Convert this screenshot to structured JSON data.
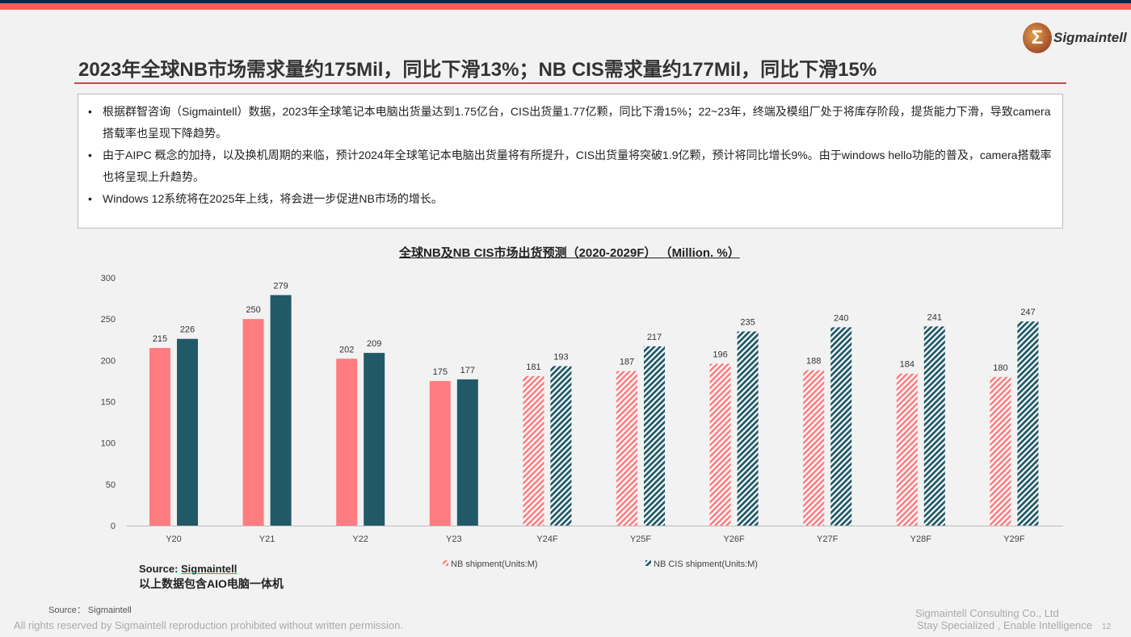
{
  "header": {
    "logo_text": "Sigmaintell",
    "title": "2023年全球NB市场需求量约175Mil，同比下滑13%；NB CIS需求量约177Mil，同比下滑15%"
  },
  "bullets": [
    "根据群智咨询（Sigmaintell）数据，2023年全球笔记本电脑出货量达到1.75亿台，CIS出货量1.77亿颗，同比下滑15%；22~23年，终端及模组厂处于将库存阶段，提货能力下滑，导致camera搭载率也呈现下降趋势。",
    "由于AIPC 概念的加持，以及换机周期的来临，预计2024年全球笔记本电脑出货量将有所提升，CIS出货量将突破1.9亿颗，预计将同比增长9%。由于windows hello功能的普及，camera搭载率也将呈现上升趋势。",
    "Windows 12系统将在2025年上线，将会进一步促进NB市场的增长。"
  ],
  "chart_data": {
    "type": "bar",
    "title": "全球NB及NB CIS市场出货预测（2020-2029F）  （Million. %）",
    "categories": [
      "Y20",
      "Y21",
      "Y22",
      "Y23",
      "Y24F",
      "Y25F",
      "Y26F",
      "Y27F",
      "Y28F",
      "Y29F"
    ],
    "forecast_from_index": 4,
    "series": [
      {
        "name": "NB shipment(Units:M)",
        "color": "#ff7c80",
        "values": [
          215,
          250,
          202,
          175,
          181,
          187,
          196,
          188,
          184,
          180
        ]
      },
      {
        "name": "NB CIS shipment(Units:M)",
        "color": "#215968",
        "values": [
          226,
          279,
          209,
          177,
          193,
          217,
          235,
          240,
          241,
          247
        ]
      }
    ],
    "ylim": [
      0,
      300
    ],
    "yticks": [
      0,
      50,
      100,
      150,
      200,
      250,
      300
    ],
    "legend_position": "bottom"
  },
  "source_label": "Source: ",
  "source_name": "Sigmaintell",
  "note": "以上数据包含AIO电脑一体机",
  "footer": {
    "source": "Source：  Sigmaintell",
    "rights": "All rights reserved by Sigmaintell reproduction prohibited without written permission.",
    "company": "Sigmaintell Consulting Co., Ltd",
    "slogan": "Stay Specialized , Enable Intelligence",
    "page": "12"
  }
}
